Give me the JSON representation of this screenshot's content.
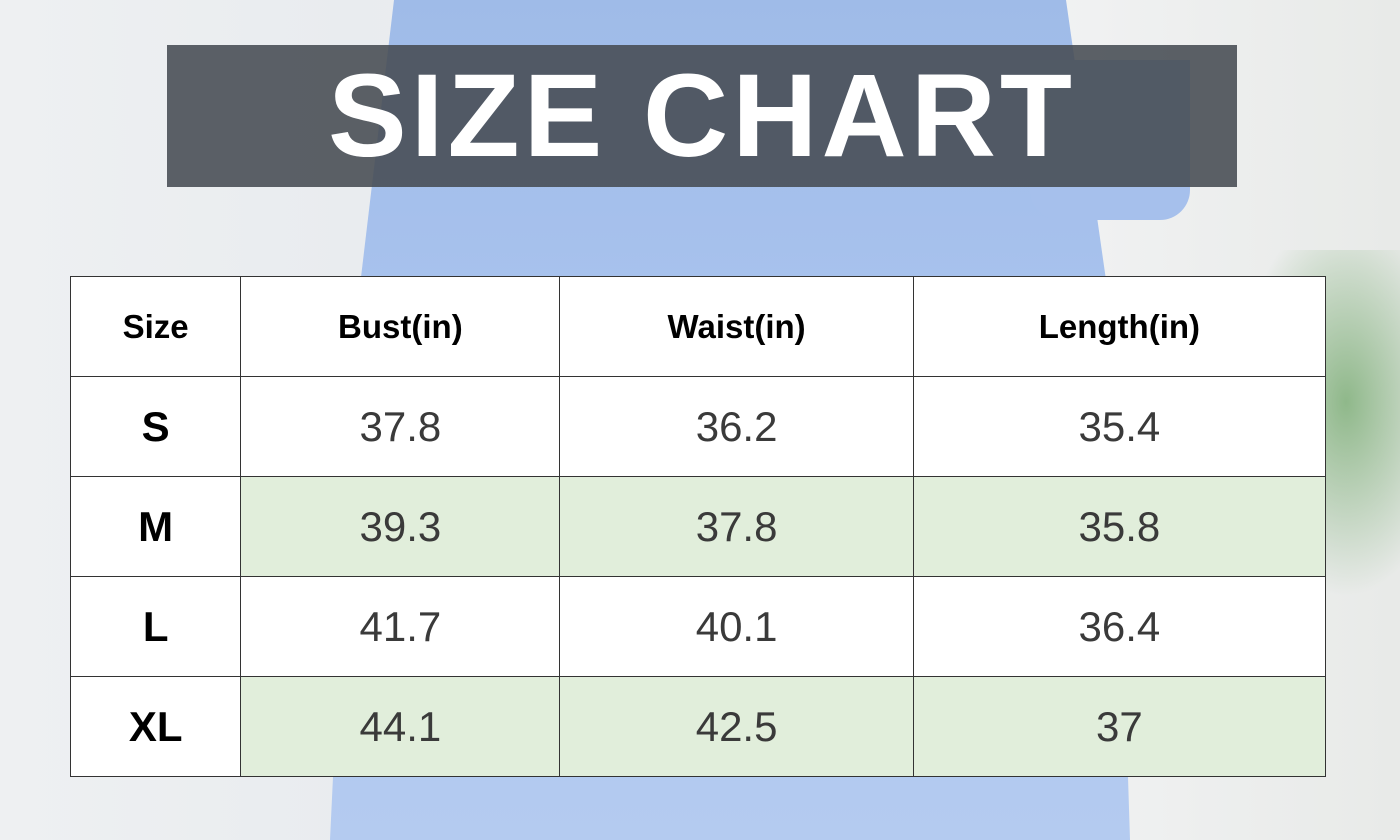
{
  "title": "SIZE CHART",
  "colors": {
    "banner": "#464b52",
    "highlight_row": "#e1eedb"
  },
  "table": {
    "headers": [
      "Size",
      "Bust(in)",
      "Waist(in)",
      "Length(in)"
    ],
    "rows": [
      [
        "S",
        "37.8",
        "36.2",
        "35.4"
      ],
      [
        "M",
        "39.3",
        "37.8",
        "35.8"
      ],
      [
        "L",
        "41.7",
        "40.1",
        "36.4"
      ],
      [
        "XL",
        "44.1",
        "42.5",
        "37"
      ]
    ]
  }
}
